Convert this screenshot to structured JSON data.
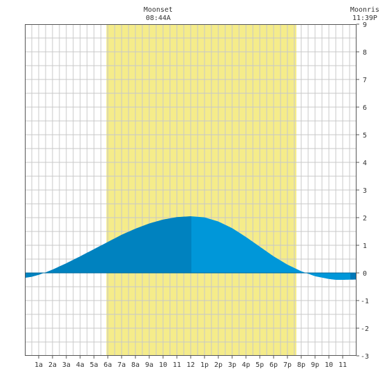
{
  "header": {
    "moonset_label": "Moonset",
    "moonset_time": "08:44A",
    "moonrise_label": "Moonris",
    "moonrise_time": "11:39P"
  },
  "colors": {
    "daylight": "#f5ec8a",
    "tide_before_high": "#0082bf",
    "tide_after_high": "#0097d9",
    "tide_night": "#0078b8",
    "grid": "#c8c8c8",
    "axis": "#555555",
    "zero_line": "#006a9e"
  },
  "chart_data": {
    "type": "area",
    "title": "",
    "xlabel": "",
    "ylabel": "",
    "xlim": [
      0,
      24
    ],
    "ylim": [
      -3,
      9
    ],
    "grid": true,
    "x_ticks": [
      {
        "x": 1,
        "label": "1a"
      },
      {
        "x": 2,
        "label": "2a"
      },
      {
        "x": 3,
        "label": "3a"
      },
      {
        "x": 4,
        "label": "4a"
      },
      {
        "x": 5,
        "label": "5a"
      },
      {
        "x": 6,
        "label": "6a"
      },
      {
        "x": 7,
        "label": "7a"
      },
      {
        "x": 8,
        "label": "8a"
      },
      {
        "x": 9,
        "label": "9a"
      },
      {
        "x": 10,
        "label": "10"
      },
      {
        "x": 11,
        "label": "11"
      },
      {
        "x": 12,
        "label": "12"
      },
      {
        "x": 13,
        "label": "1p"
      },
      {
        "x": 14,
        "label": "2p"
      },
      {
        "x": 15,
        "label": "3p"
      },
      {
        "x": 16,
        "label": "4p"
      },
      {
        "x": 17,
        "label": "5p"
      },
      {
        "x": 18,
        "label": "6p"
      },
      {
        "x": 19,
        "label": "7p"
      },
      {
        "x": 20,
        "label": "8p"
      },
      {
        "x": 21,
        "label": "9p"
      },
      {
        "x": 22,
        "label": "10"
      },
      {
        "x": 23,
        "label": "11"
      }
    ],
    "y_ticks": [
      {
        "y": 9,
        "label": "9"
      },
      {
        "y": 8,
        "label": "8"
      },
      {
        "y": 7,
        "label": "7"
      },
      {
        "y": 6,
        "label": "6"
      },
      {
        "y": 5,
        "label": "5"
      },
      {
        "y": 4,
        "label": "4"
      },
      {
        "y": 3,
        "label": "3"
      },
      {
        "y": 2,
        "label": "2"
      },
      {
        "y": 1,
        "label": "1"
      },
      {
        "y": 0,
        "label": "0"
      },
      {
        "y": -1,
        "label": "-1"
      },
      {
        "y": -2,
        "label": "-2"
      },
      {
        "y": -3,
        "label": "-3"
      }
    ],
    "daylight": {
      "start": 5.9,
      "end": 19.65
    },
    "high_tide_x": 12.05,
    "series": [
      {
        "values": [
          [
            0,
            -0.18
          ],
          [
            0.5,
            -0.14
          ],
          [
            1,
            -0.07
          ],
          [
            1.5,
            0.02
          ],
          [
            2,
            0.12
          ],
          [
            3,
            0.35
          ],
          [
            4,
            0.6
          ],
          [
            5,
            0.86
          ],
          [
            6,
            1.12
          ],
          [
            7,
            1.38
          ],
          [
            8,
            1.6
          ],
          [
            9,
            1.79
          ],
          [
            10,
            1.93
          ],
          [
            11,
            2.02
          ],
          [
            12,
            2.05
          ],
          [
            13,
            2.01
          ],
          [
            14,
            1.86
          ],
          [
            15,
            1.62
          ],
          [
            16,
            1.3
          ],
          [
            17,
            0.95
          ],
          [
            18,
            0.6
          ],
          [
            19,
            0.3
          ],
          [
            20,
            0.06
          ],
          [
            21,
            -0.12
          ],
          [
            22,
            -0.22
          ],
          [
            22.5,
            -0.25
          ],
          [
            23,
            -0.25
          ],
          [
            24,
            -0.24
          ]
        ]
      }
    ]
  }
}
